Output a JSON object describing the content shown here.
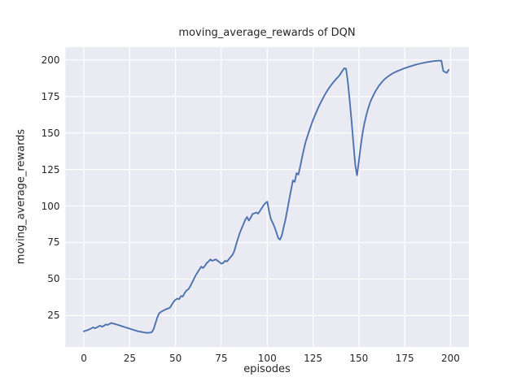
{
  "chart_data": {
    "type": "line",
    "title": "moving_average_rewards of DQN",
    "xlabel": "episodes",
    "ylabel": "moving_average_rewards",
    "xlim": [
      -10,
      210
    ],
    "ylim": [
      3.5,
      208.8
    ],
    "xticks": [
      0,
      25,
      50,
      75,
      100,
      125,
      150,
      175,
      200
    ],
    "yticks": [
      25,
      50,
      75,
      100,
      125,
      150,
      175,
      200
    ],
    "grid": true,
    "legend": "none",
    "style": "seaborn-darkgrid",
    "colors": {
      "line": "#4c72b0",
      "plot_background": "#eaeaf2",
      "grid": "#ffffff",
      "text": "#262626",
      "figure_background": "#ffffff"
    },
    "series": [
      {
        "x": [
          0,
          1,
          2,
          3,
          4,
          5,
          6,
          7,
          8,
          9,
          10,
          11,
          12,
          13,
          14,
          15,
          16,
          17,
          18,
          19,
          20,
          21,
          22,
          23,
          24,
          25,
          26,
          27,
          28,
          29,
          30,
          31,
          32,
          33,
          34,
          35,
          36,
          37,
          38,
          39,
          40,
          41,
          42,
          43,
          44,
          45,
          46,
          47,
          48,
          49,
          50,
          51,
          52,
          53,
          54,
          55,
          56,
          57,
          58,
          59,
          60,
          61,
          62,
          63,
          64,
          65,
          66,
          67,
          68,
          69,
          70,
          71,
          72,
          73,
          74,
          75,
          76,
          77,
          78,
          79,
          80,
          81,
          82,
          83,
          84,
          85,
          86,
          87,
          88,
          89,
          90,
          91,
          92,
          93,
          94,
          95,
          96,
          97,
          98,
          99,
          100,
          101,
          102,
          103,
          104,
          105,
          106,
          107,
          108,
          109,
          110,
          111,
          112,
          113,
          114,
          115,
          116,
          117,
          118,
          119,
          120,
          121,
          122,
          123,
          124,
          125,
          126,
          127,
          128,
          129,
          130,
          131,
          132,
          133,
          134,
          135,
          136,
          137,
          138,
          139,
          140,
          141,
          142,
          143,
          144,
          145,
          146,
          147,
          148,
          149,
          150,
          151,
          152,
          153,
          154,
          155,
          156,
          157,
          158,
          159,
          160,
          161,
          162,
          163,
          164,
          165,
          166,
          167,
          168,
          169,
          170,
          171,
          172,
          173,
          174,
          175,
          176,
          177,
          178,
          179,
          180,
          181,
          182,
          183,
          184,
          185,
          186,
          187,
          188,
          189,
          190,
          191,
          192,
          193,
          194,
          195,
          196,
          197,
          198,
          199
        ],
        "y": [
          14.2,
          14.6,
          15.0,
          15.5,
          16.2,
          16.9,
          16.3,
          16.8,
          17.5,
          18.0,
          17.3,
          18.1,
          18.9,
          18.6,
          19.3,
          19.9,
          19.5,
          19.2,
          18.8,
          18.4,
          18.0,
          17.6,
          17.2,
          16.8,
          16.4,
          16.0,
          15.6,
          15.2,
          14.8,
          14.4,
          14.1,
          13.9,
          13.6,
          13.4,
          13.2,
          13.2,
          13.3,
          13.6,
          15.5,
          19.5,
          23.5,
          26.5,
          27.5,
          28.2,
          28.8,
          29.4,
          29.8,
          30.5,
          32.5,
          34.5,
          35.8,
          36.6,
          36.2,
          38.4,
          38.0,
          40.5,
          42.2,
          43.0,
          45.0,
          47.5,
          50.0,
          52.5,
          54.5,
          56.5,
          58.5,
          57.5,
          59.0,
          61.0,
          62.0,
          63.5,
          62.5,
          63.0,
          63.5,
          62.5,
          61.5,
          60.5,
          61.0,
          62.5,
          62.0,
          63.5,
          65.0,
          66.5,
          69.0,
          73.5,
          77.5,
          81.5,
          84.5,
          87.5,
          90.5,
          92.5,
          90.0,
          92.0,
          94.5,
          95.0,
          95.5,
          94.8,
          96.5,
          98.5,
          100.5,
          102.0,
          103.0,
          96.5,
          91.0,
          88.5,
          85.5,
          82.0,
          78.0,
          77.0,
          80.0,
          85.5,
          91.0,
          97.5,
          104.5,
          111.0,
          117.5,
          116.5,
          122.5,
          121.5,
          127.0,
          133.0,
          139.0,
          144.0,
          148.0,
          152.0,
          155.5,
          159.0,
          162.0,
          165.0,
          167.8,
          170.4,
          172.8,
          175.2,
          177.4,
          179.4,
          181.3,
          183.0,
          184.6,
          186.1,
          187.5,
          188.8,
          190.5,
          192.5,
          194.3,
          194.0,
          185.0,
          172.0,
          158.0,
          143.0,
          128.0,
          121.0,
          131.0,
          141.0,
          150.0,
          156.5,
          162.0,
          166.5,
          170.5,
          173.5,
          176.0,
          178.5,
          180.5,
          182.5,
          184.0,
          185.5,
          186.8,
          187.8,
          188.8,
          189.7,
          190.5,
          191.2,
          191.8,
          192.4,
          192.9,
          193.4,
          193.9,
          194.4,
          194.8,
          195.2,
          195.6,
          196.0,
          196.4,
          196.8,
          197.1,
          197.4,
          197.7,
          198.0,
          198.2,
          198.5,
          198.7,
          198.9,
          199.1,
          199.3,
          199.4,
          199.5,
          199.5,
          199.5,
          192.5,
          191.8,
          191.2,
          193.3
        ]
      }
    ]
  }
}
